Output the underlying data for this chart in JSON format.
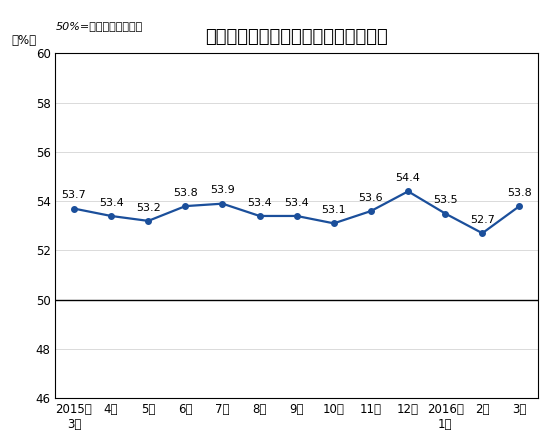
{
  "title": "非制造业商务活动指数（经季节调整）",
  "subtitle": "50%=与上月比较无变化",
  "ylabel": "（%）",
  "x_labels": [
    "2015年\n3月",
    "4月",
    "5月",
    "6月",
    "7月",
    "8月",
    "9月",
    "10月",
    "11月",
    "12月",
    "2016年\n1月",
    "2月",
    "3月"
  ],
  "values": [
    53.7,
    53.4,
    53.2,
    53.8,
    53.9,
    53.4,
    53.4,
    53.1,
    53.6,
    54.4,
    53.5,
    52.7,
    53.8
  ],
  "ylim": [
    46,
    60
  ],
  "yticks": [
    46,
    48,
    50,
    52,
    54,
    56,
    58,
    60
  ],
  "line_color": "#1B4F9B",
  "marker": "o",
  "marker_size": 4,
  "line_width": 1.6,
  "grid_color": "#cccccc",
  "background_color": "#ffffff",
  "plot_bg_color": "#ffffff",
  "hline_y": 50,
  "hline_color": "#000000",
  "title_fontsize": 13,
  "label_fontsize": 8.5,
  "annotation_fontsize": 8,
  "subtitle_fontsize": 8
}
